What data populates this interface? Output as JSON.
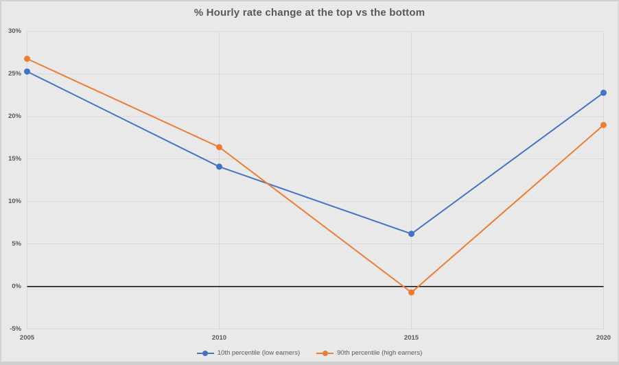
{
  "chart_data": {
    "type": "line",
    "title": "% Hourly rate change at the top vs the bottom",
    "categories": [
      "2005",
      "2010",
      "2015",
      "2020"
    ],
    "series": [
      {
        "name": "10th percentile (low earners)",
        "color": "#4472C4",
        "values": [
          25.3,
          14.1,
          6.2,
          22.8
        ]
      },
      {
        "name": "90th percentile (high earners)",
        "color": "#ED7D31",
        "values": [
          26.8,
          16.4,
          -0.7,
          19.0
        ]
      }
    ],
    "xlabel": "",
    "ylabel": "",
    "ylim": [
      -5,
      30
    ],
    "ytick_step": 5,
    "ytick_labels": [
      "30%",
      "25%",
      "20%",
      "15%",
      "10%",
      "5%",
      "0%",
      "-5%"
    ],
    "grid": true,
    "zero_line": true,
    "legend_position": "bottom",
    "colors": {
      "series_blue": "#4472C4",
      "series_orange": "#ED7D31",
      "zero_line": "#000000",
      "text": "#595959"
    }
  }
}
